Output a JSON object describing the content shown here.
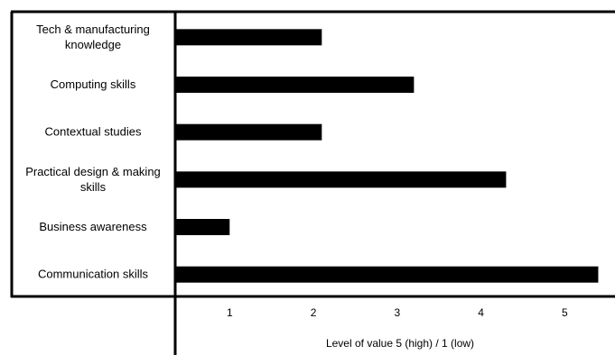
{
  "chart_data": {
    "type": "bar",
    "orientation": "horizontal",
    "title": "",
    "categories": [
      "Tech & manufacturing knowledge",
      "Computing skills",
      "Contextual studies",
      "Practical design & making skills",
      "Business awareness",
      "Communication skills"
    ],
    "category_lines": [
      [
        "Tech & manufacturing",
        "knowledge"
      ],
      [
        "Computing skills"
      ],
      [
        "Contextual studies"
      ],
      [
        "Practical design & making",
        "skills"
      ],
      [
        "Business awareness"
      ],
      [
        "Communication skills"
      ]
    ],
    "values": [
      2.1,
      3.2,
      2.1,
      4.3,
      1.0,
      5.4
    ],
    "xticks": [
      "1",
      "2",
      "3",
      "4",
      "5"
    ],
    "xtick_values": [
      1,
      2,
      3,
      4,
      5
    ],
    "xlim": [
      0.35,
      5.6
    ],
    "xlabel": "Level of value  5 (high)  /  1 (low)",
    "ylabel": "",
    "grid": false,
    "bar_color": "#000000"
  }
}
